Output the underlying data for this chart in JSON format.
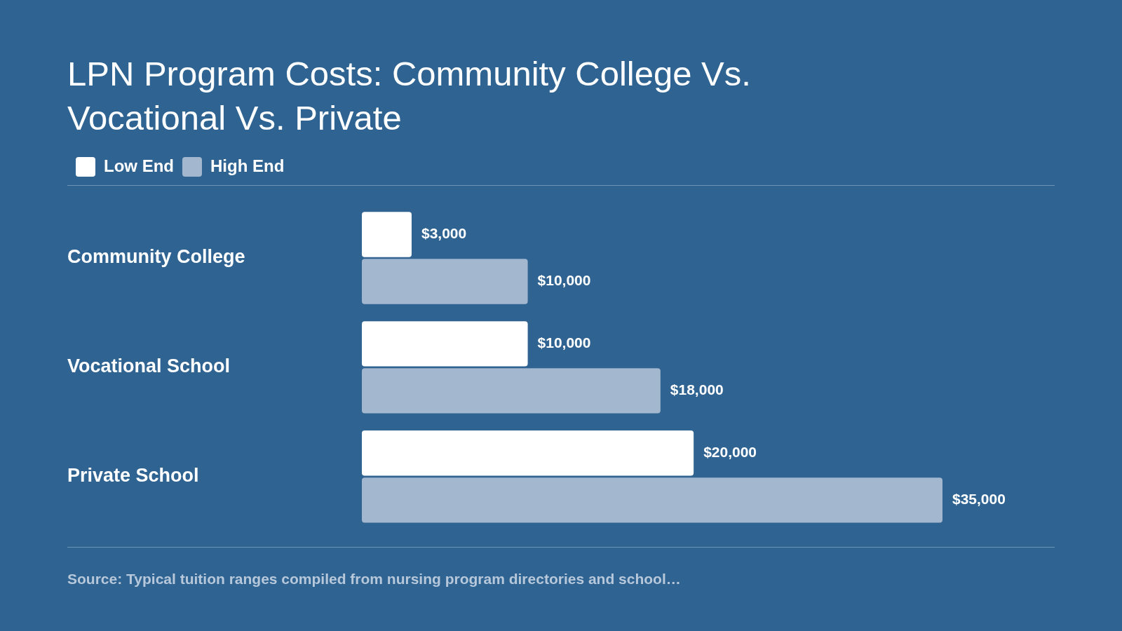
{
  "chart_data": {
    "type": "bar",
    "orientation": "horizontal",
    "title": "LPN Program Costs: Community College Vs. Vocational Vs. Private",
    "categories": [
      "Community College",
      "Vocational School",
      "Private School"
    ],
    "series": [
      {
        "name": "Low End",
        "color": "#ffffff",
        "values": [
          3000,
          10000,
          20000
        ],
        "value_labels": [
          "$3,000",
          "$10,000",
          "$20,000"
        ]
      },
      {
        "name": "High End",
        "color": "#a3b8cf",
        "values": [
          10000,
          18000,
          35000
        ],
        "value_labels": [
          "$10,000",
          "$18,000",
          "$35,000"
        ]
      }
    ],
    "legend": "top left",
    "grid": false,
    "tick_labels": "y",
    "annotations": [
      "Source: Typical tuition ranges compiled from nursing program directories and school…"
    ]
  }
}
